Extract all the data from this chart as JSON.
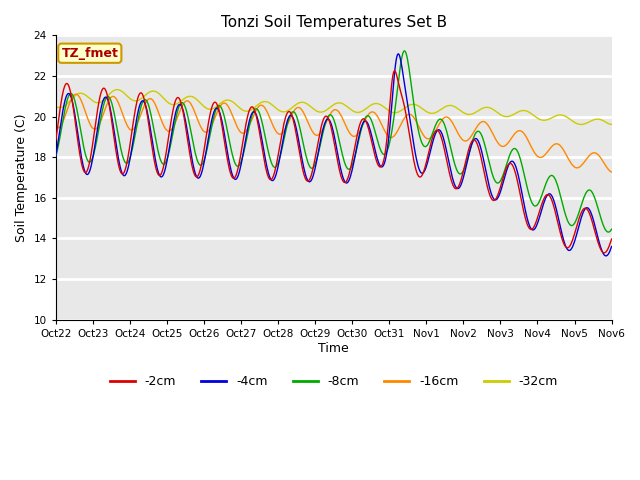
{
  "title": "Tonzi Soil Temperatures Set B",
  "xlabel": "Time",
  "ylabel": "Soil Temperature (C)",
  "ylim": [
    10,
    24
  ],
  "yticks": [
    10,
    12,
    14,
    16,
    18,
    20,
    22,
    24
  ],
  "annotation_text": "TZ_fmet",
  "annotation_color": "#aa0000",
  "annotation_bg": "#ffffcc",
  "annotation_border": "#cc9900",
  "fig_bg_color": "#ffffff",
  "plot_bg_color": "#e8e8e8",
  "legend_entries": [
    "-2cm",
    "-4cm",
    "-8cm",
    "-16cm",
    "-32cm"
  ],
  "line_colors": [
    "#dd0000",
    "#0000dd",
    "#00aa00",
    "#ff8800",
    "#cccc00"
  ],
  "x_tick_labels": [
    "Oct 22",
    "Oct 23",
    "Oct 24",
    "Oct 25",
    "Oct 26",
    "Oct 27",
    "Oct 28",
    "Oct 29",
    "Oct 30",
    "Oct 31",
    "Nov 1",
    "Nov 2",
    "Nov 3",
    "Nov 4",
    "Nov 5",
    "Nov 6"
  ],
  "num_points": 720,
  "time_days": 15
}
